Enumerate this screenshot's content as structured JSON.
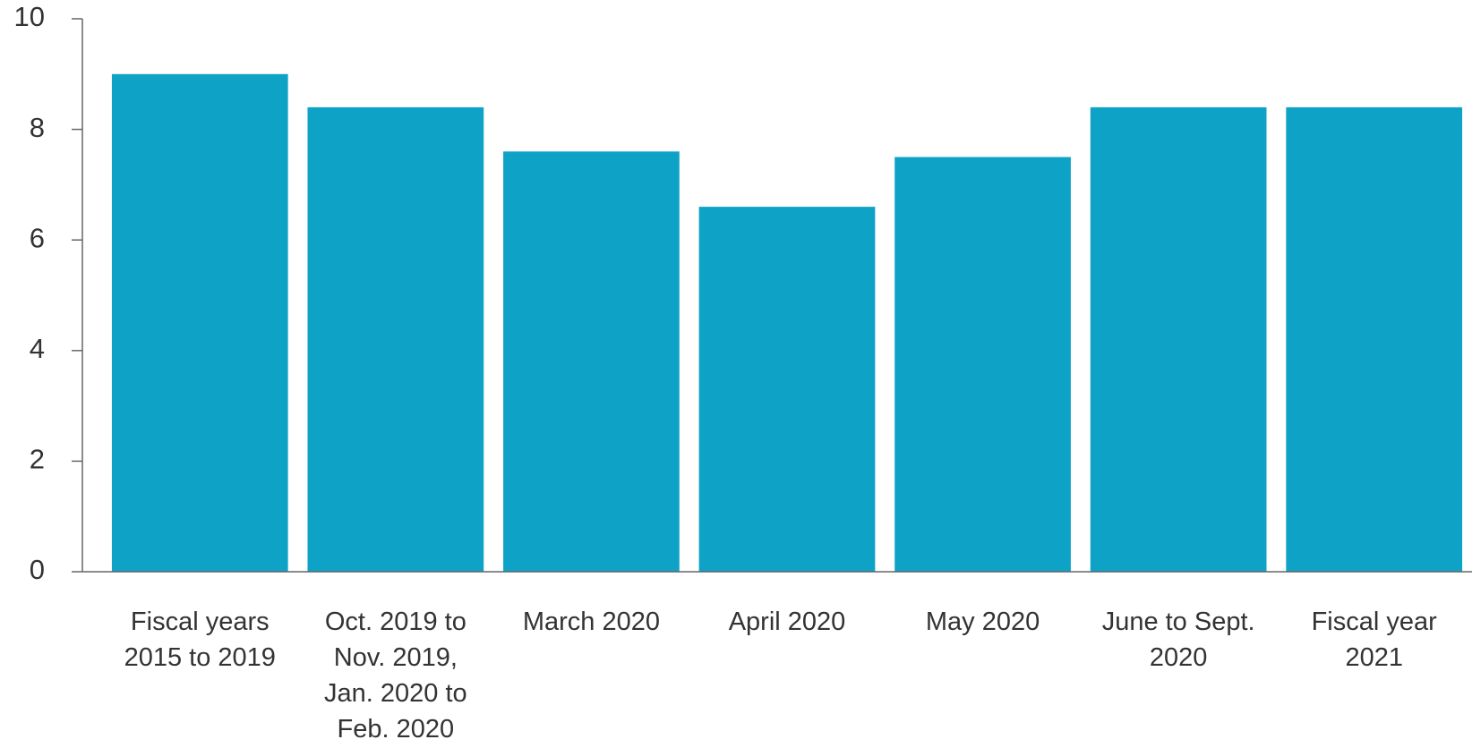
{
  "chart_data": {
    "type": "bar",
    "categories": [
      "Fiscal years\n2015 to 2019",
      "Oct. 2019 to\nNov. 2019,\nJan. 2020 to\nFeb. 2020",
      "March 2020",
      "April 2020",
      "May 2020",
      "June to Sept.\n2020",
      "Fiscal year\n2021"
    ],
    "values": [
      9.0,
      8.4,
      7.6,
      6.6,
      7.5,
      8.4,
      8.4
    ],
    "color": "#0ea3c6",
    "ylim": [
      0,
      10
    ],
    "yticks": [
      0,
      2,
      4,
      6,
      8,
      10
    ],
    "grid": false
  }
}
